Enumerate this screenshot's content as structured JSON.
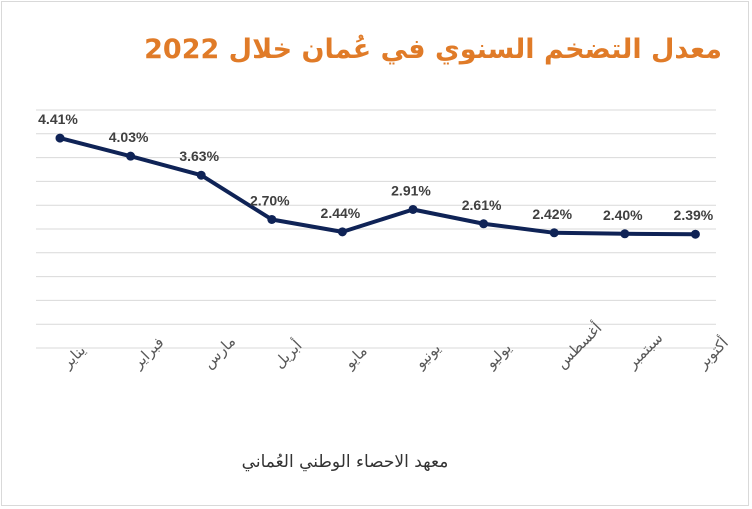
{
  "title": "معدل التضخم السنوي في عُمان خلال 2022",
  "source": "معهد الاحصاء الوطني العُماني",
  "colors": {
    "title": "#e07b28",
    "line": "#0f2356",
    "grid": "#d9d9d9",
    "label": "#404040"
  },
  "chart_data": {
    "type": "line",
    "title": "معدل التضخم السنوي في عُمان خلال 2022",
    "categories": [
      "يناير",
      "فبراير",
      "مارس",
      "أبريل",
      "مايو",
      "يونيو",
      "يوليو",
      "أغسطس",
      "سبتمبر",
      "أكتوبر"
    ],
    "series": [
      {
        "values": [
          4.41,
          4.03,
          3.63,
          2.7,
          2.44,
          2.91,
          2.61,
          2.42,
          2.4,
          2.39
        ]
      }
    ],
    "data_labels": [
      "4.41%",
      "4.03%",
      "3.63%",
      "2.70%",
      "2.44%",
      "2.91%",
      "2.61%",
      "2.42%",
      "2.40%",
      "2.39%"
    ],
    "ylim": [
      0,
      5
    ],
    "grid": true,
    "legend": "none",
    "xlabel": "",
    "ylabel": ""
  }
}
